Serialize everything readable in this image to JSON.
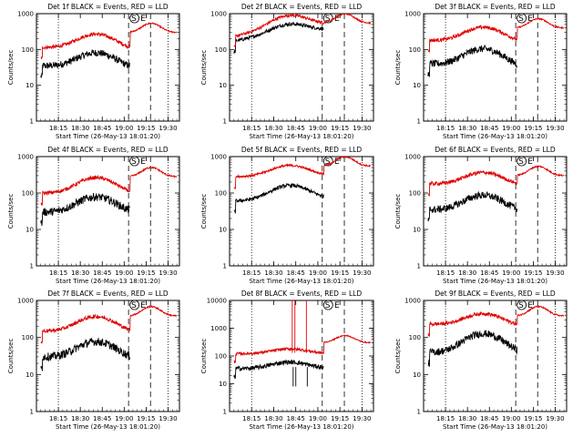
{
  "colors": {
    "events": "#000000",
    "lld": "#e00000",
    "axes": "#000000",
    "background": "#ffffff"
  },
  "ytick_labels": [
    "1",
    "10",
    "100",
    "1000",
    "10000"
  ],
  "xtick_labels": [
    "18:15",
    "18:30",
    "18:45",
    "19:00",
    "19:15",
    "19:30"
  ],
  "marker_labels": {
    "start": "S",
    "end": "E"
  },
  "chart_data": [
    {
      "type": "line",
      "title": "Det 1f BLACK = Events, RED = LLD",
      "xlabel": "Start Time (26-May-13 18:01:20)",
      "ylabel": "Counts/sec",
      "yscale": "log",
      "ylim": [
        1,
        1000
      ],
      "xlim": [
        18.0,
        19.63
      ],
      "xtick_hours": [
        18.25,
        18.5,
        18.75,
        19.0,
        19.25,
        19.5
      ],
      "vlines": {
        "dotted": [
          18.25,
          19.5
        ],
        "dashed": [
          19.05,
          19.3
        ]
      },
      "series": [
        {
          "name": "Events",
          "color": "#000000",
          "base": 35,
          "peak": 85,
          "dip": 28,
          "noise": 0.1
        },
        {
          "name": "LLD",
          "color": "#e00000",
          "base": 115,
          "peak": 280,
          "dip": 95,
          "post": 300,
          "noise": 0.05
        }
      ]
    },
    {
      "type": "line",
      "title": "Det 2f BLACK = Events, RED = LLD",
      "xlabel": "Start Time (26-May-13 18:01:20)",
      "ylabel": "Counts/sec",
      "yscale": "log",
      "ylim": [
        1,
        1000
      ],
      "xlim": [
        18.0,
        19.63
      ],
      "xtick_hours": [
        18.25,
        18.5,
        18.75,
        19.0,
        19.25,
        19.5
      ],
      "vlines": {
        "dotted": [
          18.25,
          19.5
        ],
        "dashed": [
          19.05,
          19.3
        ]
      },
      "series": [
        {
          "name": "Events",
          "color": "#000000",
          "base": 170,
          "peak": 580,
          "dip": 350,
          "noise": 0.05
        },
        {
          "name": "LLD",
          "color": "#e00000",
          "base": 230,
          "peak": 1000,
          "dip": 500,
          "post": 550,
          "noise": 0.04
        }
      ]
    },
    {
      "type": "line",
      "title": "Det 3f BLACK = Events, RED = LLD",
      "xlabel": "Start Time (26-May-13 18:01:20)",
      "ylabel": "Counts/sec",
      "yscale": "log",
      "ylim": [
        1,
        1000
      ],
      "xlim": [
        18.0,
        19.63
      ],
      "xtick_hours": [
        18.25,
        18.5,
        18.75,
        19.0,
        19.25,
        19.5
      ],
      "vlines": {
        "dotted": [
          18.25,
          19.5
        ],
        "dashed": [
          19.05,
          19.3
        ]
      },
      "series": [
        {
          "name": "Events",
          "color": "#000000",
          "base": 40,
          "peak": 110,
          "dip": 30,
          "noise": 0.1
        },
        {
          "name": "LLD",
          "color": "#e00000",
          "base": 180,
          "peak": 430,
          "dip": 160,
          "post": 400,
          "noise": 0.05
        }
      ]
    },
    {
      "type": "line",
      "title": "Det 4f BLACK = Events, RED = LLD",
      "xlabel": "Start Time (26-May-13 18:01:20)",
      "ylabel": "Counts/sec",
      "yscale": "log",
      "ylim": [
        1,
        1000
      ],
      "xlim": [
        18.0,
        19.63
      ],
      "xtick_hours": [
        18.25,
        18.5,
        18.75,
        19.0,
        19.25,
        19.5
      ],
      "vlines": {
        "dotted": [
          18.25,
          19.5
        ],
        "dashed": [
          19.05,
          19.3
        ]
      },
      "series": [
        {
          "name": "Events",
          "color": "#000000",
          "base": 30,
          "peak": 80,
          "dip": 27,
          "noise": 0.11
        },
        {
          "name": "LLD",
          "color": "#e00000",
          "base": 100,
          "peak": 270,
          "dip": 90,
          "post": 280,
          "noise": 0.05
        }
      ]
    },
    {
      "type": "line",
      "title": "Det 5f BLACK = Events, RED = LLD",
      "xlabel": "Start Time (26-May-13 18:01:20)",
      "ylabel": "Counts/sec",
      "yscale": "log",
      "ylim": [
        1,
        1000
      ],
      "xlim": [
        18.0,
        19.63
      ],
      "xtick_hours": [
        18.25,
        18.5,
        18.75,
        19.0,
        19.25,
        19.5
      ],
      "vlines": {
        "dotted": [
          18.25,
          19.5
        ],
        "dashed": [
          19.05,
          19.3
        ]
      },
      "series": [
        {
          "name": "Events",
          "color": "#000000",
          "base": 60,
          "peak": 165,
          "dip": 70,
          "noise": 0.05
        },
        {
          "name": "LLD",
          "color": "#e00000",
          "base": 280,
          "peak": 580,
          "dip": 300,
          "post": 550,
          "noise": 0.03
        }
      ]
    },
    {
      "type": "line",
      "title": "Det 6f BLACK = Events, RED = LLD",
      "xlabel": "Start Time (26-May-13 18:01:20)",
      "ylabel": "Counts/sec",
      "yscale": "log",
      "ylim": [
        1,
        1000
      ],
      "xlim": [
        18.0,
        19.63
      ],
      "xtick_hours": [
        18.25,
        18.5,
        18.75,
        19.0,
        19.25,
        19.5
      ],
      "vlines": {
        "dotted": [
          18.25,
          19.5
        ],
        "dashed": [
          19.05,
          19.3
        ]
      },
      "series": [
        {
          "name": "Events",
          "color": "#000000",
          "base": 35,
          "peak": 90,
          "dip": 30,
          "noise": 0.1
        },
        {
          "name": "LLD",
          "color": "#e00000",
          "base": 180,
          "peak": 380,
          "dip": 160,
          "post": 300,
          "noise": 0.05
        }
      ]
    },
    {
      "type": "line",
      "title": "Det 7f BLACK = Events, RED = LLD",
      "xlabel": "Start Time (26-May-13 18:01:20)",
      "ylabel": "Counts/sec",
      "yscale": "log",
      "ylim": [
        1,
        1000
      ],
      "xlim": [
        18.0,
        19.63
      ],
      "xtick_hours": [
        18.25,
        18.5,
        18.75,
        19.0,
        19.25,
        19.5
      ],
      "vlines": {
        "dotted": [
          18.25,
          19.5
        ],
        "dashed": [
          19.05,
          19.3
        ]
      },
      "series": [
        {
          "name": "Events",
          "color": "#000000",
          "base": 30,
          "peak": 80,
          "dip": 25,
          "noise": 0.11
        },
        {
          "name": "LLD",
          "color": "#e00000",
          "base": 150,
          "peak": 380,
          "dip": 130,
          "post": 380,
          "noise": 0.05
        }
      ]
    },
    {
      "type": "line",
      "title": "Det 8f BLACK = Events, RED = LLD",
      "xlabel": "Start Time (26-May-13 18:01:20)",
      "ylabel": "Counts/sec",
      "yscale": "log",
      "ylim": [
        1,
        10000
      ],
      "xlim": [
        18.0,
        19.63
      ],
      "xtick_hours": [
        18.25,
        18.5,
        18.75,
        19.0,
        19.25,
        19.5
      ],
      "vlines": {
        "dotted": [
          18.25,
          19.5
        ],
        "dashed": [
          19.05,
          19.3
        ]
      },
      "series": [
        {
          "name": "Events",
          "color": "#000000",
          "base": 35,
          "peak": 60,
          "dip": 35,
          "noise": 0.08
        },
        {
          "name": "LLD",
          "color": "#e00000",
          "base": 120,
          "peak": 180,
          "dip": 120,
          "post": 300,
          "noise": 0.05
        }
      ],
      "spikes": [
        18.71,
        18.74,
        18.87
      ]
    },
    {
      "type": "line",
      "title": "Det 9f BLACK = Events, RED = LLD",
      "xlabel": "Start Time (26-May-13 18:01:20)",
      "ylabel": "Counts/sec",
      "yscale": "log",
      "ylim": [
        1,
        1000
      ],
      "xlim": [
        18.0,
        19.63
      ],
      "xtick_hours": [
        18.25,
        18.5,
        18.75,
        19.0,
        19.25,
        19.5
      ],
      "vlines": {
        "dotted": [
          18.25,
          19.5
        ],
        "dashed": [
          19.05,
          19.3
        ]
      },
      "series": [
        {
          "name": "Events",
          "color": "#000000",
          "base": 40,
          "peak": 130,
          "dip": 35,
          "noise": 0.1
        },
        {
          "name": "LLD",
          "color": "#e00000",
          "base": 230,
          "peak": 460,
          "dip": 200,
          "post": 380,
          "noise": 0.05
        }
      ]
    }
  ]
}
